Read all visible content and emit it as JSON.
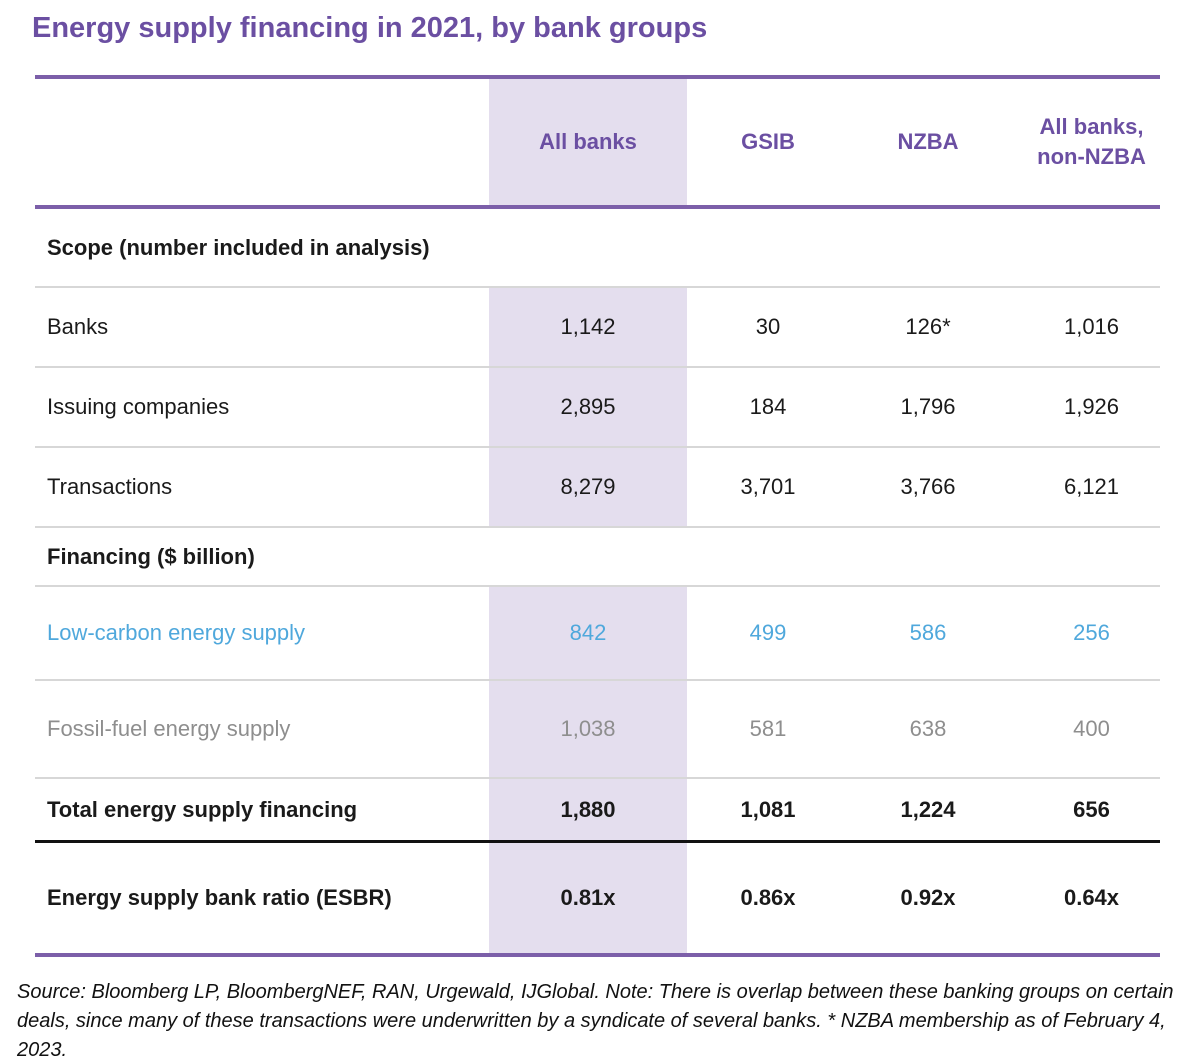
{
  "chart_data": {
    "type": "table",
    "title": "Energy supply financing in 2021, by bank groups",
    "columns": [
      "All banks",
      "GSIB",
      "NZBA",
      "All banks, non-NZBA"
    ],
    "highlighted_column": "All banks",
    "sections": [
      {
        "label": "Scope (number included in analysis)",
        "rows": [
          {
            "cells": [
              "Banks",
              "1,142",
              "30",
              "126*",
              "1,016"
            ],
            "numeric": [
              1142,
              30,
              126,
              1016
            ],
            "emphasis": "normal"
          },
          {
            "cells": [
              "Issuing companies",
              "2,895",
              "184",
              "1,796",
              "1,926"
            ],
            "numeric": [
              2895,
              184,
              1796,
              1926
            ],
            "emphasis": "normal"
          },
          {
            "cells": [
              "Transactions",
              "8,279",
              "3,701",
              "3,766",
              "6,121"
            ],
            "numeric": [
              8279,
              3701,
              3766,
              6121
            ],
            "emphasis": "normal"
          }
        ]
      },
      {
        "label": "Financing ($ billion)",
        "rows": [
          {
            "cells": [
              "Low-carbon energy supply",
              "842",
              "499",
              "586",
              "256"
            ],
            "numeric": [
              842,
              499,
              586,
              256
            ],
            "emphasis": "low-carbon-blue"
          },
          {
            "cells": [
              "Fossil-fuel energy supply",
              "1,038",
              "581",
              "638",
              "400"
            ],
            "numeric": [
              1038,
              581,
              638,
              400
            ],
            "emphasis": "fossil-gray"
          },
          {
            "cells": [
              "Total energy supply financing",
              "1,880",
              "1,081",
              "1,224",
              "656"
            ],
            "numeric": [
              1880,
              1081,
              1224,
              656
            ],
            "emphasis": "bold"
          },
          {
            "cells": [
              "Energy supply bank ratio (ESBR)",
              "0.81x",
              "0.86x",
              "0.92x",
              "0.64x"
            ],
            "numeric": [
              0.81,
              0.86,
              0.92,
              0.64
            ],
            "emphasis": "bold"
          }
        ]
      }
    ]
  },
  "colors": {
    "accent_purple": "#6b4fa2",
    "rule_purple": "#7c5fa9",
    "band_lavender": "#e4deee",
    "low_carbon_blue": "#4fa8dc",
    "fossil_gray": "#8e8e8e",
    "divider_gray": "#d7d7d7",
    "total_rule_black": "#111111"
  },
  "footer": {
    "note": "Source: Bloomberg LP, BloombergNEF, RAN, Urgewald, IJGlobal. Note: There is overlap between these banking groups on certain deals, since many of these transactions were underwritten by a syndicate of several banks. * NZBA membership as of February 4, 2023."
  }
}
